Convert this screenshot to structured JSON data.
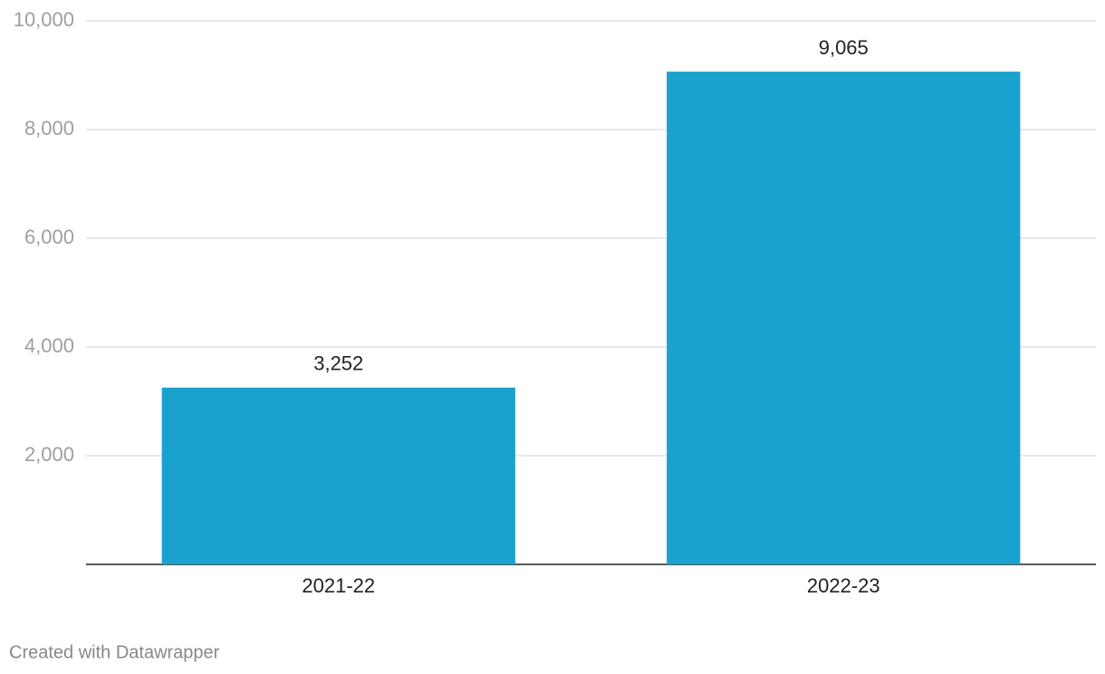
{
  "chart_data": {
    "type": "bar",
    "categories": [
      "2021-22",
      "2022-23"
    ],
    "values": [
      3252,
      9065
    ],
    "value_labels": [
      "3,252",
      "9,065"
    ],
    "color": "#1aa1ce",
    "ylim": [
      0,
      10000
    ],
    "yticks": [
      {
        "value": 2000,
        "label": "2,000"
      },
      {
        "value": 4000,
        "label": "4,000"
      },
      {
        "value": 6000,
        "label": "6,000"
      },
      {
        "value": 8000,
        "label": "8,000"
      },
      {
        "value": 10000,
        "label": "10,000"
      }
    ],
    "grid": true,
    "credit": "Created with Datawrapper"
  }
}
